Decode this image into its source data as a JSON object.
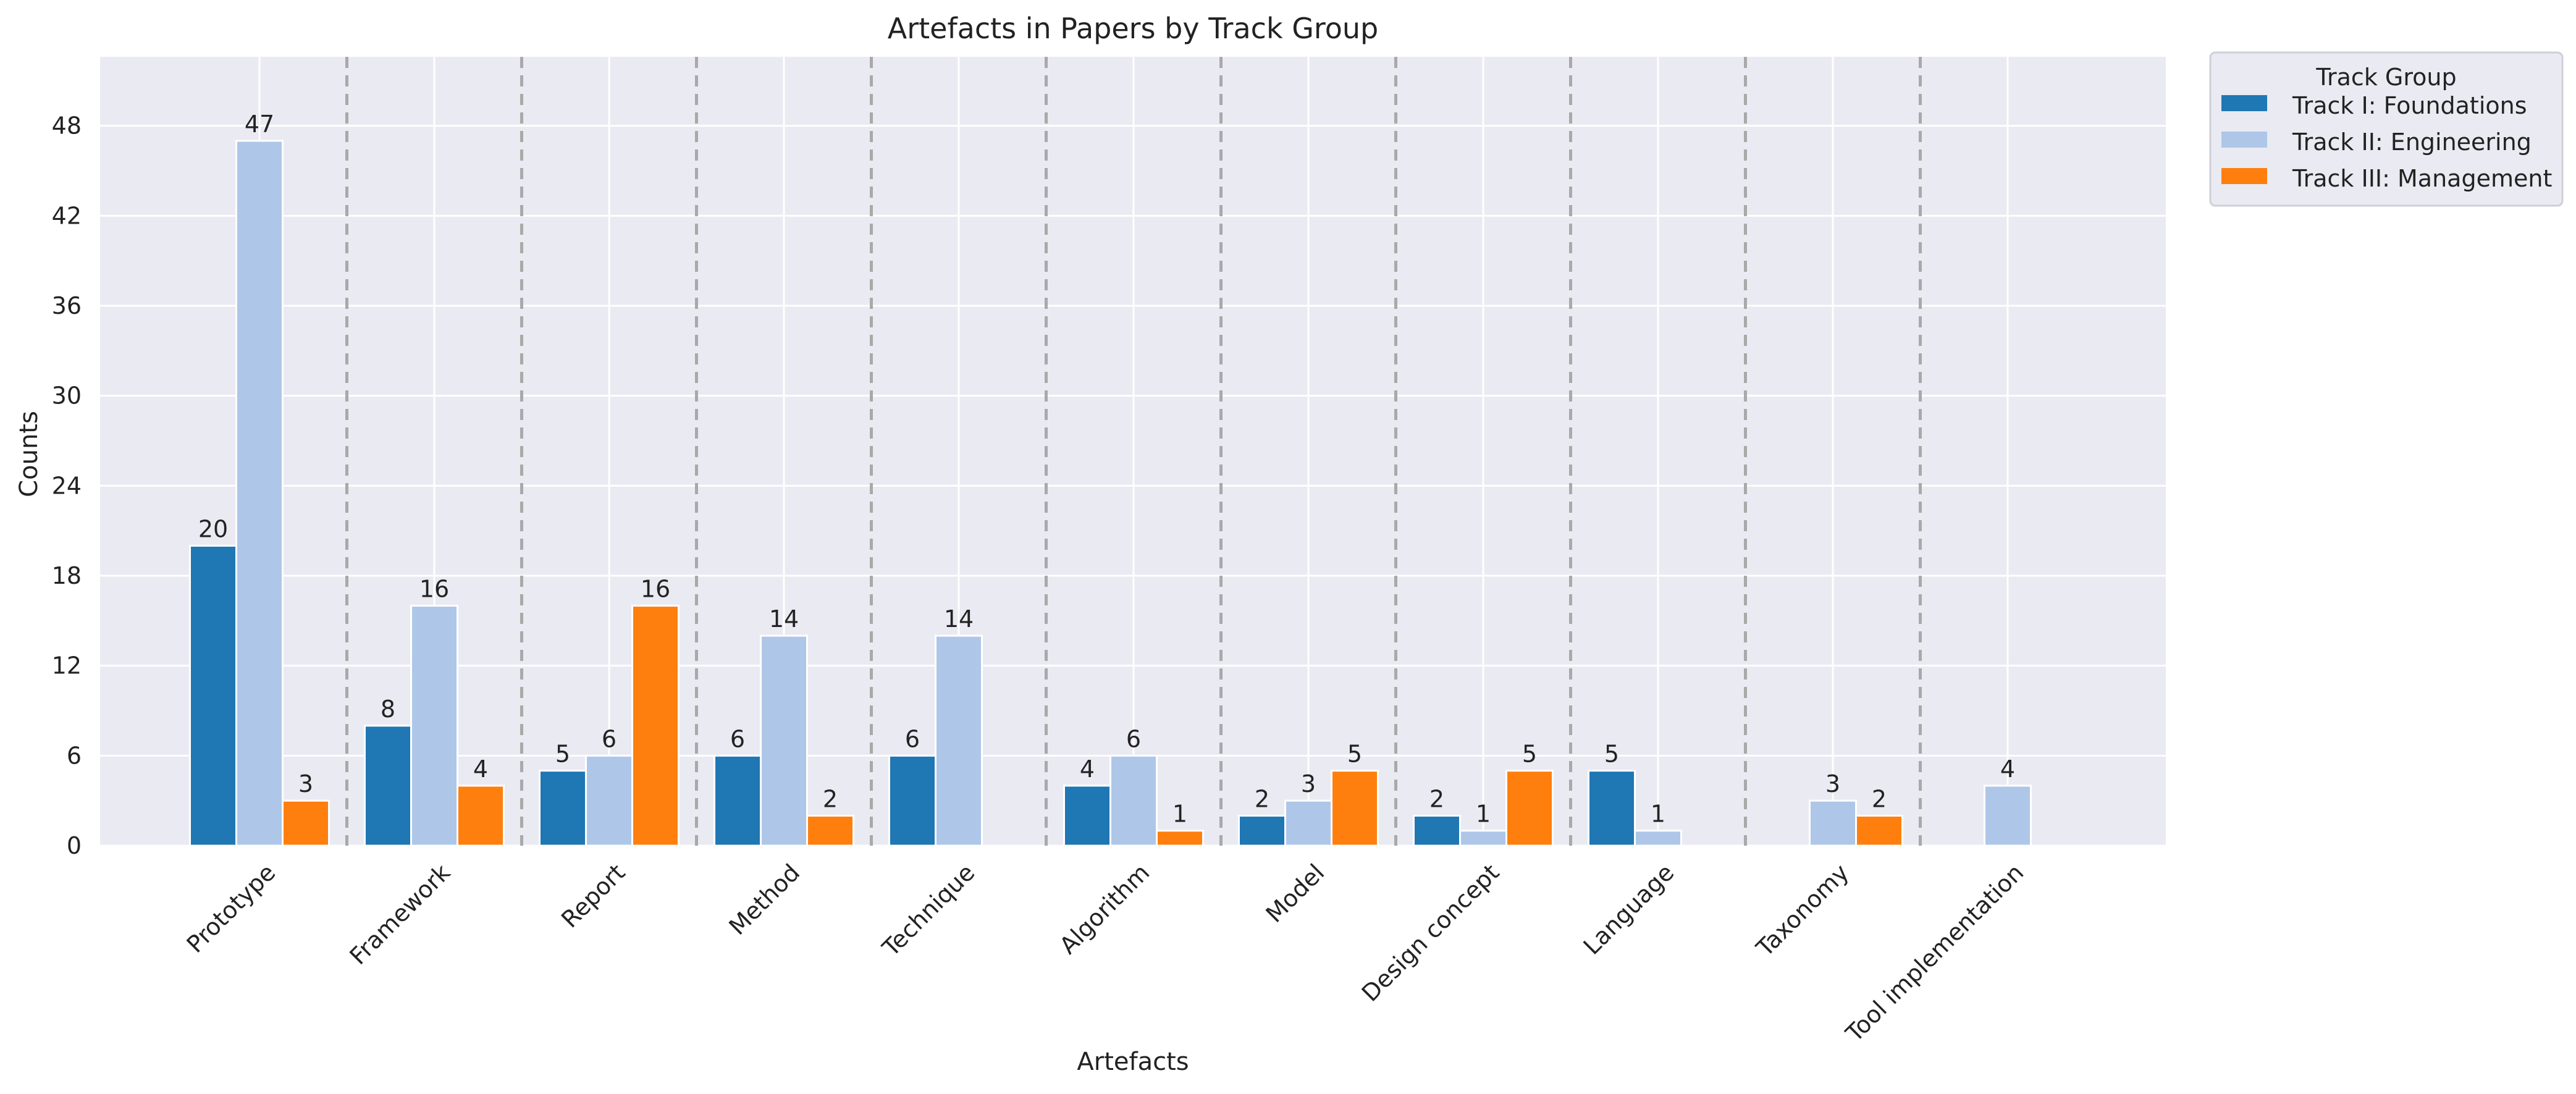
{
  "chart_data": {
    "type": "bar",
    "title": "Artefacts in Papers by Track Group",
    "xlabel": "Artefacts",
    "ylabel": "Counts",
    "ylim": [
      0,
      52.6
    ],
    "yticks": [
      0,
      6,
      12,
      18,
      24,
      30,
      36,
      42,
      48
    ],
    "grid": true,
    "legend": {
      "title": "Track Group",
      "placement": "outside-top-right"
    },
    "categories": [
      "Prototype",
      "Framework",
      "Report",
      "Method",
      "Technique",
      "Algorithm",
      "Model",
      "Design concept",
      "Language",
      "Taxonomy",
      "Tool implementation"
    ],
    "series": [
      {
        "name": "Track I: Foundations",
        "color": "#1f77b4",
        "values": [
          20,
          8,
          5,
          6,
          6,
          4,
          2,
          2,
          5,
          0,
          0
        ]
      },
      {
        "name": "Track II: Engineering",
        "color": "#aec7e8",
        "values": [
          47,
          16,
          6,
          14,
          14,
          6,
          3,
          1,
          1,
          3,
          4
        ]
      },
      {
        "name": "Track III: Management",
        "color": "#ff7f0e",
        "values": [
          3,
          4,
          16,
          2,
          0,
          1,
          5,
          5,
          0,
          2,
          0
        ]
      }
    ]
  }
}
